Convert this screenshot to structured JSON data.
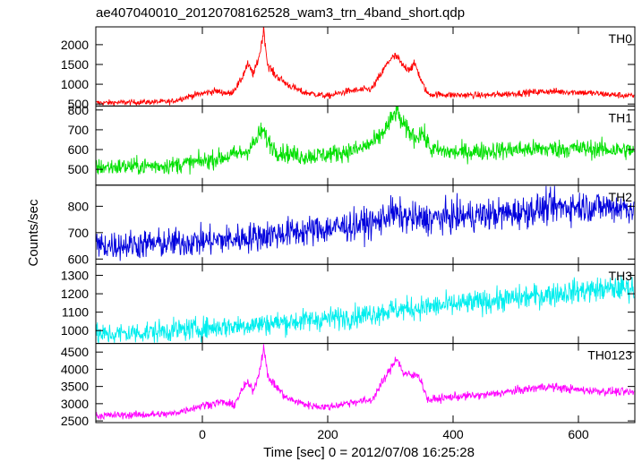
{
  "chart_data": {
    "type": "line",
    "title": "ae407040010_20120708162528_wam3_trn_4band_short.qdp",
    "xlabel": "Time [sec] 0 = 2012/07/08 16:25:28",
    "ylabel": "Counts/sec",
    "xlim": [
      -170,
      690
    ],
    "x_ticks": [
      0,
      200,
      400,
      600
    ],
    "x_tick_labels": [
      "0",
      "200",
      "400",
      "600"
    ],
    "grid": false,
    "panels": [
      {
        "name": "TH0",
        "color": "#ff0000",
        "ylim": [
          450,
          2450
        ],
        "y_ticks": [
          500,
          1000,
          1500,
          2000
        ],
        "y_tick_labels": [
          "500",
          "1000",
          "1500",
          "2000"
        ],
        "noise": 35,
        "profile": [
          [
            -170,
            530
          ],
          [
            -50,
            560
          ],
          [
            -20,
            700
          ],
          [
            20,
            830
          ],
          [
            45,
            760
          ],
          [
            60,
            1050
          ],
          [
            72,
            1500
          ],
          [
            82,
            1250
          ],
          [
            92,
            1800
          ],
          [
            98,
            2400
          ],
          [
            104,
            1500
          ],
          [
            115,
            1250
          ],
          [
            135,
            1000
          ],
          [
            160,
            800
          ],
          [
            200,
            700
          ],
          [
            230,
            820
          ],
          [
            270,
            880
          ],
          [
            285,
            1250
          ],
          [
            300,
            1650
          ],
          [
            310,
            1700
          ],
          [
            320,
            1450
          ],
          [
            330,
            1400
          ],
          [
            340,
            1500
          ],
          [
            350,
            1050
          ],
          [
            360,
            750
          ],
          [
            400,
            730
          ],
          [
            450,
            720
          ],
          [
            550,
            820
          ],
          [
            600,
            800
          ],
          [
            650,
            740
          ],
          [
            690,
            700
          ]
        ]
      },
      {
        "name": "TH1",
        "color": "#00e000",
        "ylim": [
          420,
          820
        ],
        "y_ticks": [
          500,
          600,
          700,
          800
        ],
        "y_tick_labels": [
          "500",
          "600",
          "700",
          "800"
        ],
        "noise": 22,
        "profile": [
          [
            -170,
            510
          ],
          [
            -50,
            520
          ],
          [
            0,
            540
          ],
          [
            40,
            565
          ],
          [
            70,
            590
          ],
          [
            85,
            640
          ],
          [
            95,
            700
          ],
          [
            105,
            640
          ],
          [
            120,
            590
          ],
          [
            160,
            565
          ],
          [
            200,
            575
          ],
          [
            250,
            600
          ],
          [
            280,
            650
          ],
          [
            300,
            740
          ],
          [
            310,
            800
          ],
          [
            320,
            720
          ],
          [
            340,
            660
          ],
          [
            350,
            690
          ],
          [
            365,
            600
          ],
          [
            400,
            585
          ],
          [
            500,
            600
          ],
          [
            600,
            605
          ],
          [
            690,
            595
          ]
        ]
      },
      {
        "name": "TH2",
        "color": "#0000dd",
        "ylim": [
          580,
          880
        ],
        "y_ticks": [
          600,
          700,
          800
        ],
        "y_tick_labels": [
          "600",
          "700",
          "800"
        ],
        "noise": 28,
        "profile": [
          [
            -170,
            650
          ],
          [
            -50,
            660
          ],
          [
            50,
            675
          ],
          [
            100,
            690
          ],
          [
            200,
            715
          ],
          [
            280,
            740
          ],
          [
            300,
            775
          ],
          [
            320,
            760
          ],
          [
            350,
            750
          ],
          [
            400,
            760
          ],
          [
            500,
            775
          ],
          [
            550,
            795
          ],
          [
            600,
            800
          ],
          [
            690,
            795
          ]
        ]
      },
      {
        "name": "TH3",
        "color": "#00eeee",
        "ylim": [
          930,
          1360
        ],
        "y_ticks": [
          1000,
          1100,
          1200,
          1300
        ],
        "y_tick_labels": [
          "1000",
          "1100",
          "1200",
          "1300"
        ],
        "noise": 30,
        "profile": [
          [
            -170,
            975
          ],
          [
            -50,
            1000
          ],
          [
            50,
            1025
          ],
          [
            150,
            1050
          ],
          [
            250,
            1080
          ],
          [
            300,
            1110
          ],
          [
            400,
            1140
          ],
          [
            500,
            1175
          ],
          [
            600,
            1215
          ],
          [
            690,
            1235
          ]
        ]
      },
      {
        "name": "TH0123",
        "color": "#ff00ff",
        "ylim": [
          2450,
          4750
        ],
        "y_ticks": [
          2500,
          3000,
          3500,
          4000,
          4500
        ],
        "y_tick_labels": [
          "2500",
          "3000",
          "3500",
          "4000",
          "4500"
        ],
        "noise": 55,
        "profile": [
          [
            -170,
            2650
          ],
          [
            -50,
            2700
          ],
          [
            0,
            2950
          ],
          [
            30,
            3050
          ],
          [
            50,
            2950
          ],
          [
            70,
            3600
          ],
          [
            82,
            3400
          ],
          [
            92,
            4000
          ],
          [
            98,
            4700
          ],
          [
            104,
            3800
          ],
          [
            115,
            3550
          ],
          [
            135,
            3150
          ],
          [
            170,
            2950
          ],
          [
            200,
            2900
          ],
          [
            240,
            3050
          ],
          [
            270,
            3100
          ],
          [
            285,
            3550
          ],
          [
            300,
            4000
          ],
          [
            310,
            4350
          ],
          [
            320,
            3900
          ],
          [
            335,
            3800
          ],
          [
            345,
            3850
          ],
          [
            360,
            3100
          ],
          [
            400,
            3200
          ],
          [
            450,
            3250
          ],
          [
            550,
            3500
          ],
          [
            600,
            3400
          ],
          [
            690,
            3320
          ]
        ]
      }
    ]
  }
}
